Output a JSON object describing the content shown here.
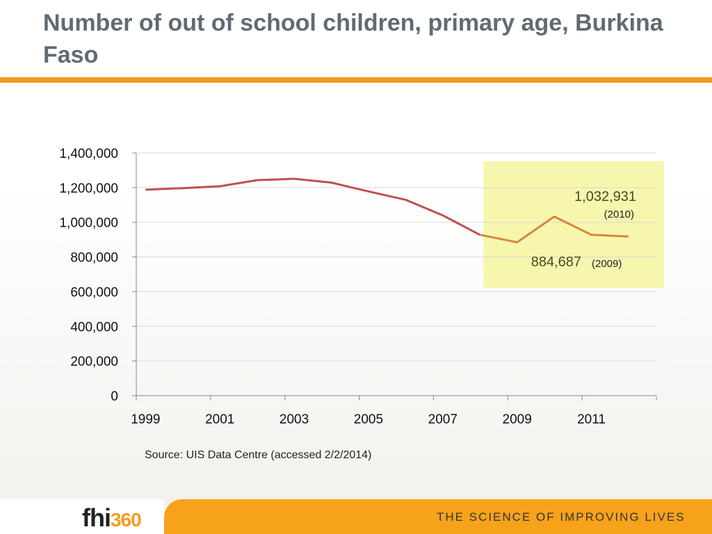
{
  "title": "Number of out of school children, primary age, Burkina Faso",
  "source": "Source: UIS Data Centre (accessed 2/2/2014)",
  "footer": {
    "logo_text": "fhi",
    "logo_number": "360",
    "tagline": "THE SCIENCE OF IMPROVING LIVES"
  },
  "colors": {
    "accent": "#f39c1e",
    "line_early": "#c0504d",
    "line_late": "#d8853a",
    "highlight": "#f5f5a0"
  },
  "chart_data": {
    "type": "line",
    "x": [
      1999,
      2000,
      2001,
      2002,
      2003,
      2004,
      2005,
      2006,
      2007,
      2008,
      2009,
      2010,
      2011,
      2012
    ],
    "values": [
      1188000,
      1197000,
      1208000,
      1243000,
      1251000,
      1229000,
      1178000,
      1130000,
      1040000,
      928000,
      884687,
      1032931,
      928000,
      918000
    ],
    "x_tick_labels": [
      "1999",
      "2001",
      "2003",
      "2005",
      "2007",
      "2009",
      "2011"
    ],
    "y_tick_labels": [
      "0",
      "200,000",
      "400,000",
      "600,000",
      "800,000",
      "1,000,000",
      "1,200,000",
      "1,400,000"
    ],
    "ylim": [
      0,
      1400000
    ],
    "grid": true,
    "highlight_range": [
      2008,
      2012
    ],
    "annotations": [
      {
        "value": "1,032,931",
        "year": "(2010)"
      },
      {
        "value": "884,687",
        "year": "(2009)"
      }
    ]
  }
}
